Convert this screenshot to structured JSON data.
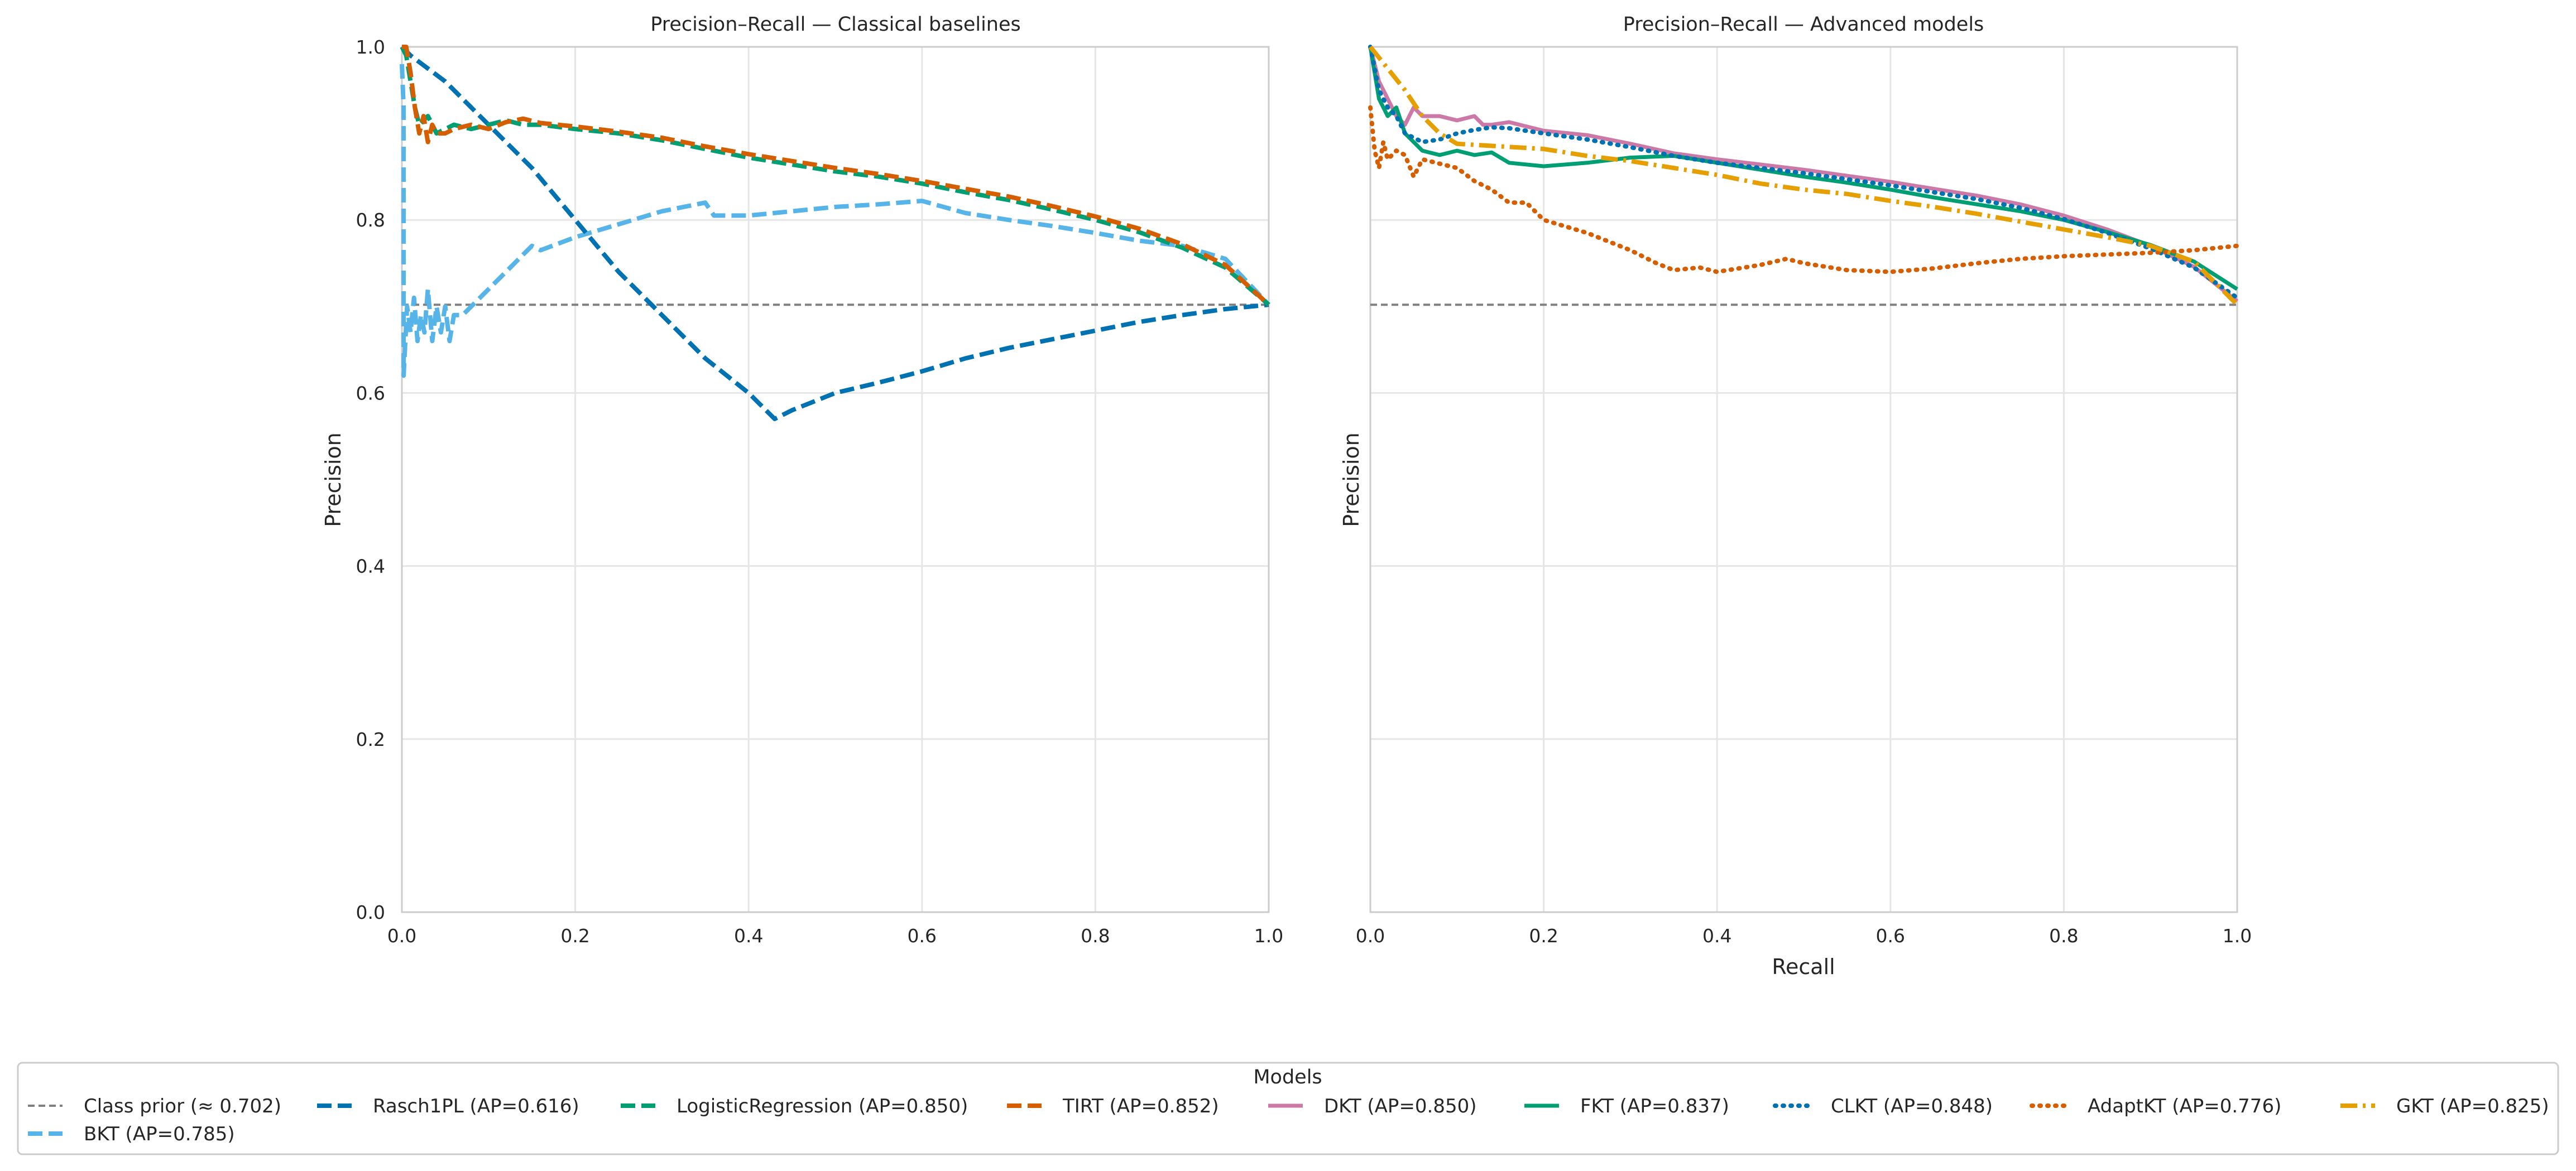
{
  "chart_data": [
    {
      "type": "line",
      "title": "Precision–Recall — Classical baselines",
      "xlabel": "",
      "ylabel": "Precision",
      "xlim": [
        0,
        1
      ],
      "ylim": [
        0,
        1
      ],
      "xticks": [
        "0.0",
        "0.2",
        "0.4",
        "0.6",
        "0.8",
        "1.0"
      ],
      "yticks": [
        "0.0",
        "0.2",
        "0.4",
        "0.6",
        "0.8",
        "1.0"
      ],
      "grid": true,
      "series": [
        {
          "name": "Class prior (≈ 0.702)",
          "color": "#808080",
          "style": "dashed-thin",
          "x": [
            0,
            1
          ],
          "y": [
            0.702,
            0.702
          ]
        },
        {
          "name": "BKT (AP=0.785)",
          "color": "#56b4e9",
          "style": "dashed",
          "x": [
            0.0,
            0.002,
            0.002,
            0.004,
            0.006,
            0.01,
            0.014,
            0.018,
            0.022,
            0.026,
            0.03,
            0.035,
            0.04,
            0.045,
            0.05,
            0.055,
            0.06,
            0.07,
            0.08,
            0.1,
            0.12,
            0.14,
            0.15,
            0.16,
            0.2,
            0.25,
            0.3,
            0.35,
            0.36,
            0.4,
            0.45,
            0.5,
            0.55,
            0.6,
            0.65,
            0.7,
            0.75,
            0.8,
            0.85,
            0.9,
            0.95,
            1.0
          ],
          "y": [
            0.98,
            0.93,
            0.62,
            0.66,
            0.7,
            0.67,
            0.71,
            0.66,
            0.69,
            0.67,
            0.72,
            0.66,
            0.7,
            0.67,
            0.7,
            0.66,
            0.69,
            0.69,
            0.7,
            0.72,
            0.74,
            0.76,
            0.77,
            0.765,
            0.78,
            0.795,
            0.81,
            0.82,
            0.805,
            0.805,
            0.81,
            0.815,
            0.818,
            0.822,
            0.808,
            0.8,
            0.793,
            0.785,
            0.776,
            0.77,
            0.755,
            0.702
          ]
        },
        {
          "name": "Rasch1PL (AP=0.616)",
          "color": "#0072b2",
          "style": "dashed",
          "x": [
            0.0,
            0.01,
            0.05,
            0.1,
            0.15,
            0.2,
            0.25,
            0.3,
            0.35,
            0.4,
            0.43,
            0.45,
            0.5,
            0.55,
            0.6,
            0.65,
            0.7,
            0.75,
            0.8,
            0.85,
            0.9,
            0.95,
            1.0
          ],
          "y": [
            1.0,
            0.99,
            0.96,
            0.91,
            0.86,
            0.8,
            0.74,
            0.69,
            0.64,
            0.6,
            0.57,
            0.58,
            0.6,
            0.612,
            0.625,
            0.64,
            0.652,
            0.662,
            0.672,
            0.682,
            0.69,
            0.697,
            0.702
          ]
        },
        {
          "name": "LogisticRegression (AP=0.850)",
          "color": "#009e73",
          "style": "dashed",
          "x": [
            0.0,
            0.005,
            0.01,
            0.015,
            0.02,
            0.03,
            0.04,
            0.06,
            0.08,
            0.1,
            0.12,
            0.14,
            0.16,
            0.2,
            0.25,
            0.3,
            0.35,
            0.4,
            0.45,
            0.5,
            0.55,
            0.6,
            0.65,
            0.7,
            0.75,
            0.8,
            0.85,
            0.9,
            0.95,
            1.0
          ],
          "y": [
            1.0,
            0.99,
            0.96,
            0.93,
            0.91,
            0.92,
            0.9,
            0.91,
            0.905,
            0.91,
            0.915,
            0.91,
            0.91,
            0.905,
            0.9,
            0.892,
            0.882,
            0.872,
            0.864,
            0.856,
            0.85,
            0.842,
            0.832,
            0.823,
            0.812,
            0.8,
            0.786,
            0.768,
            0.745,
            0.702
          ]
        },
        {
          "name": "TIRT (AP=0.852)",
          "color": "#d55e00",
          "style": "dashed",
          "x": [
            0.0,
            0.005,
            0.01,
            0.015,
            0.02,
            0.025,
            0.03,
            0.035,
            0.04,
            0.05,
            0.06,
            0.08,
            0.1,
            0.12,
            0.14,
            0.16,
            0.2,
            0.25,
            0.3,
            0.35,
            0.4,
            0.45,
            0.5,
            0.55,
            0.6,
            0.65,
            0.7,
            0.75,
            0.8,
            0.85,
            0.9,
            0.95,
            1.0
          ],
          "y": [
            1.0,
            1.0,
            0.97,
            0.93,
            0.9,
            0.92,
            0.89,
            0.91,
            0.9,
            0.9,
            0.905,
            0.91,
            0.905,
            0.913,
            0.917,
            0.912,
            0.908,
            0.902,
            0.895,
            0.885,
            0.876,
            0.868,
            0.86,
            0.853,
            0.845,
            0.836,
            0.827,
            0.816,
            0.804,
            0.79,
            0.772,
            0.748,
            0.702
          ]
        }
      ]
    },
    {
      "type": "line",
      "title": "Precision–Recall — Advanced models",
      "xlabel": "Recall",
      "ylabel": "Precision",
      "xlim": [
        0,
        1
      ],
      "ylim": [
        0,
        1
      ],
      "xticks": [
        "0.0",
        "0.2",
        "0.4",
        "0.6",
        "0.8",
        "1.0"
      ],
      "grid": true,
      "series": [
        {
          "name": "Class prior (≈ 0.702)",
          "color": "#808080",
          "style": "dashed-thin",
          "x": [
            0,
            1
          ],
          "y": [
            0.702,
            0.702
          ]
        },
        {
          "name": "DKT (AP=0.850)",
          "color": "#cc79a7",
          "style": "solid",
          "x": [
            0.0,
            0.01,
            0.02,
            0.03,
            0.04,
            0.05,
            0.06,
            0.08,
            0.1,
            0.12,
            0.13,
            0.14,
            0.16,
            0.2,
            0.25,
            0.3,
            0.35,
            0.4,
            0.45,
            0.5,
            0.55,
            0.6,
            0.65,
            0.7,
            0.75,
            0.8,
            0.85,
            0.9,
            0.95,
            1.0
          ],
          "y": [
            1.0,
            0.96,
            0.94,
            0.92,
            0.91,
            0.93,
            0.92,
            0.92,
            0.915,
            0.92,
            0.91,
            0.91,
            0.913,
            0.903,
            0.898,
            0.888,
            0.877,
            0.87,
            0.864,
            0.858,
            0.851,
            0.844,
            0.836,
            0.828,
            0.818,
            0.805,
            0.789,
            0.77,
            0.746,
            0.706
          ]
        },
        {
          "name": "FKT (AP=0.837)",
          "color": "#009e73",
          "style": "solid",
          "x": [
            0.0,
            0.01,
            0.02,
            0.03,
            0.04,
            0.05,
            0.06,
            0.08,
            0.1,
            0.12,
            0.14,
            0.16,
            0.2,
            0.25,
            0.3,
            0.35,
            0.4,
            0.45,
            0.5,
            0.55,
            0.6,
            0.65,
            0.7,
            0.75,
            0.8,
            0.85,
            0.9,
            0.95,
            1.0
          ],
          "y": [
            1.0,
            0.94,
            0.92,
            0.93,
            0.9,
            0.89,
            0.88,
            0.875,
            0.88,
            0.875,
            0.878,
            0.866,
            0.862,
            0.866,
            0.872,
            0.874,
            0.866,
            0.858,
            0.85,
            0.843,
            0.835,
            0.826,
            0.818,
            0.81,
            0.8,
            0.786,
            0.771,
            0.752,
            0.72
          ]
        },
        {
          "name": "CLKT (AP=0.848)",
          "color": "#0072b2",
          "style": "dotted",
          "x": [
            0.0,
            0.01,
            0.02,
            0.03,
            0.04,
            0.06,
            0.08,
            0.1,
            0.12,
            0.14,
            0.16,
            0.2,
            0.25,
            0.3,
            0.35,
            0.4,
            0.45,
            0.5,
            0.55,
            0.6,
            0.65,
            0.7,
            0.75,
            0.8,
            0.85,
            0.9,
            0.95,
            1.0
          ],
          "y": [
            1.0,
            0.95,
            0.93,
            0.92,
            0.9,
            0.89,
            0.893,
            0.9,
            0.904,
            0.907,
            0.906,
            0.9,
            0.893,
            0.884,
            0.874,
            0.866,
            0.86,
            0.854,
            0.847,
            0.84,
            0.832,
            0.824,
            0.814,
            0.801,
            0.785,
            0.767,
            0.745,
            0.71
          ]
        },
        {
          "name": "AdaptKT (AP=0.776)",
          "color": "#d55e00",
          "style": "dotted",
          "x": [
            0.0,
            0.005,
            0.01,
            0.015,
            0.02,
            0.03,
            0.04,
            0.05,
            0.06,
            0.08,
            0.1,
            0.12,
            0.14,
            0.16,
            0.18,
            0.2,
            0.25,
            0.3,
            0.33,
            0.35,
            0.38,
            0.4,
            0.45,
            0.48,
            0.5,
            0.55,
            0.6,
            0.65,
            0.7,
            0.75,
            0.8,
            0.85,
            0.9,
            0.95,
            1.0
          ],
          "y": [
            0.93,
            0.88,
            0.86,
            0.89,
            0.87,
            0.88,
            0.875,
            0.85,
            0.87,
            0.865,
            0.86,
            0.845,
            0.835,
            0.82,
            0.82,
            0.8,
            0.785,
            0.765,
            0.75,
            0.742,
            0.745,
            0.74,
            0.748,
            0.755,
            0.75,
            0.742,
            0.74,
            0.744,
            0.75,
            0.755,
            0.758,
            0.76,
            0.762,
            0.765,
            0.77
          ]
        },
        {
          "name": "GKT (AP=0.825)",
          "color": "#e69f00",
          "style": "dashdot",
          "x": [
            0.0,
            0.02,
            0.04,
            0.06,
            0.08,
            0.1,
            0.15,
            0.2,
            0.25,
            0.3,
            0.35,
            0.4,
            0.45,
            0.5,
            0.55,
            0.6,
            0.65,
            0.7,
            0.75,
            0.8,
            0.85,
            0.9,
            0.95,
            1.0
          ],
          "y": [
            1.0,
            0.975,
            0.95,
            0.92,
            0.9,
            0.888,
            0.885,
            0.882,
            0.874,
            0.868,
            0.86,
            0.852,
            0.842,
            0.835,
            0.83,
            0.822,
            0.815,
            0.807,
            0.798,
            0.789,
            0.78,
            0.77,
            0.752,
            0.702
          ]
        }
      ]
    }
  ],
  "legend": {
    "title": "Models",
    "placement": "bottom-center",
    "entries": [
      {
        "label": "Class prior (≈ 0.702)",
        "color": "#808080",
        "style": "dashed-thin"
      },
      {
        "label": "Rasch1PL (AP=0.616)",
        "color": "#0072b2",
        "style": "dashed"
      },
      {
        "label": "LogisticRegression (AP=0.850)",
        "color": "#009e73",
        "style": "dashed"
      },
      {
        "label": "TIRT (AP=0.852)",
        "color": "#d55e00",
        "style": "dashed"
      },
      {
        "label": "DKT (AP=0.850)",
        "color": "#cc79a7",
        "style": "solid"
      },
      {
        "label": "FKT (AP=0.837)",
        "color": "#009e73",
        "style": "solid"
      },
      {
        "label": "CLKT (AP=0.848)",
        "color": "#0072b2",
        "style": "dotted"
      },
      {
        "label": "AdaptKT (AP=0.776)",
        "color": "#d55e00",
        "style": "dotted"
      },
      {
        "label": "GKT (AP=0.825)",
        "color": "#e69f00",
        "style": "dashdot"
      },
      {
        "label": "BKT (AP=0.785)",
        "color": "#56b4e9",
        "style": "dashed"
      }
    ]
  }
}
